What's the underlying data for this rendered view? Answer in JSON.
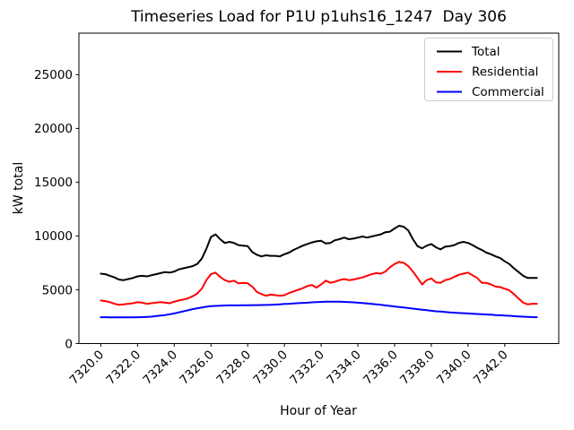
{
  "title": "Timeseries Load for P1U p1uhs16_1247  Day 306",
  "chart_data": {
    "type": "line",
    "title": "Timeseries Load for P1U p1uhs16_1247  Day 306",
    "xlabel": "Hour of Year",
    "ylabel": "kW total",
    "grid": false,
    "legend_position": "upper right",
    "xlim": [
      7318.81,
      7344.94
    ],
    "ylim": [
      0,
      28860
    ],
    "xticks": [
      7320,
      7322,
      7324,
      7326,
      7328,
      7330,
      7332,
      7334,
      7336,
      7338,
      7340,
      7342
    ],
    "xtick_labels": [
      "7320.0",
      "7322.0",
      "7324.0",
      "7326.0",
      "7328.0",
      "7330.0",
      "7332.0",
      "7334.0",
      "7336.0",
      "7338.0",
      "7340.0",
      "7342.0"
    ],
    "yticks": [
      0,
      5000,
      10000,
      15000,
      20000,
      25000
    ],
    "ytick_labels": [
      "0",
      "5000",
      "10000",
      "15000",
      "20000",
      "25000"
    ],
    "x_start": 7320.0,
    "x_step": 0.25,
    "x_end": 7343.75,
    "series": [
      {
        "name": "Total",
        "color": "#000000",
        "values": [
          6500,
          6450,
          6300,
          6150,
          5950,
          5900,
          6000,
          6100,
          6250,
          6300,
          6250,
          6350,
          6450,
          6550,
          6650,
          6600,
          6700,
          6900,
          7000,
          7100,
          7200,
          7400,
          7900,
          8800,
          9900,
          10150,
          9700,
          9350,
          9450,
          9350,
          9150,
          9100,
          9050,
          8500,
          8250,
          8100,
          8200,
          8150,
          8150,
          8100,
          8300,
          8450,
          8700,
          8900,
          9100,
          9250,
          9400,
          9500,
          9550,
          9300,
          9350,
          9600,
          9700,
          9850,
          9700,
          9750,
          9850,
          9950,
          9850,
          9950,
          10050,
          10150,
          10350,
          10400,
          10700,
          10950,
          10850,
          10500,
          9700,
          9050,
          8850,
          9100,
          9250,
          8950,
          8750,
          9000,
          9050,
          9150,
          9350,
          9450,
          9350,
          9150,
          8900,
          8700,
          8450,
          8300,
          8100,
          7950,
          7650,
          7400,
          7000,
          6650,
          6300,
          6100,
          6100,
          6100
        ]
      },
      {
        "name": "Residential",
        "color": "#ff0000",
        "values": [
          4000,
          3950,
          3850,
          3700,
          3600,
          3650,
          3700,
          3750,
          3850,
          3800,
          3700,
          3750,
          3800,
          3850,
          3800,
          3750,
          3900,
          4000,
          4100,
          4200,
          4400,
          4650,
          5100,
          5900,
          6450,
          6600,
          6200,
          5900,
          5750,
          5850,
          5600,
          5650,
          5600,
          5300,
          4800,
          4600,
          4450,
          4550,
          4500,
          4450,
          4500,
          4700,
          4850,
          5000,
          5150,
          5350,
          5450,
          5200,
          5500,
          5850,
          5650,
          5750,
          5900,
          6000,
          5900,
          5950,
          6050,
          6150,
          6300,
          6450,
          6550,
          6500,
          6700,
          7100,
          7400,
          7600,
          7500,
          7200,
          6700,
          6100,
          5500,
          5900,
          6050,
          5700,
          5650,
          5900,
          6000,
          6200,
          6400,
          6500,
          6600,
          6350,
          6100,
          5650,
          5650,
          5500,
          5300,
          5250,
          5100,
          4950,
          4600,
          4200,
          3800,
          3650,
          3700,
          3700
        ]
      },
      {
        "name": "Commercial",
        "color": "#0000ff",
        "values": [
          2450,
          2450,
          2440,
          2440,
          2430,
          2430,
          2430,
          2440,
          2450,
          2460,
          2480,
          2500,
          2550,
          2600,
          2650,
          2720,
          2800,
          2900,
          3000,
          3100,
          3200,
          3280,
          3350,
          3420,
          3470,
          3500,
          3520,
          3540,
          3550,
          3550,
          3550,
          3560,
          3560,
          3570,
          3570,
          3580,
          3590,
          3600,
          3620,
          3650,
          3680,
          3700,
          3730,
          3760,
          3780,
          3800,
          3830,
          3850,
          3870,
          3890,
          3900,
          3900,
          3890,
          3870,
          3850,
          3830,
          3800,
          3770,
          3730,
          3690,
          3650,
          3600,
          3550,
          3500,
          3450,
          3400,
          3350,
          3300,
          3250,
          3200,
          3150,
          3100,
          3050,
          3000,
          2970,
          2940,
          2900,
          2870,
          2840,
          2820,
          2800,
          2770,
          2750,
          2720,
          2700,
          2680,
          2650,
          2630,
          2600,
          2580,
          2550,
          2520,
          2500,
          2480,
          2460,
          2450
        ]
      }
    ]
  }
}
